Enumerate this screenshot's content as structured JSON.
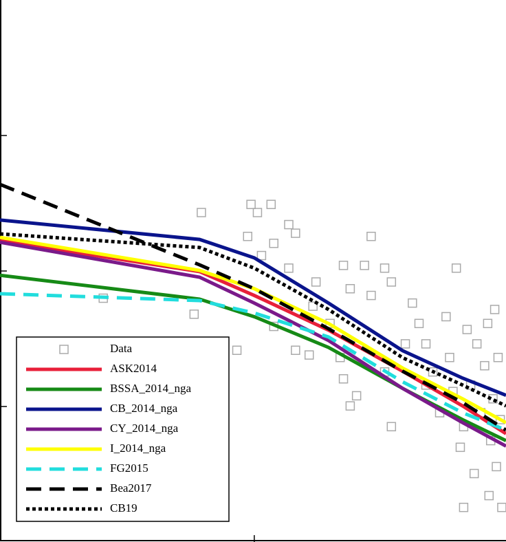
{
  "chart_data": {
    "type": "line",
    "xscale": "log",
    "yscale": "log",
    "xlim": [
      0.93,
      105
    ],
    "ylim": [
      0.001,
      10
    ],
    "xticks": [
      10
    ],
    "yticks": [
      0.01,
      0.1,
      1
    ],
    "legend": "lower-left",
    "x": [
      0.93,
      6,
      10,
      20,
      40,
      70,
      105
    ],
    "series": [
      {
        "name": "Data",
        "color": "#aaaaaa",
        "marker": "square",
        "x": [
          6.1,
          2.44,
          5.7,
          9.7,
          11.7,
          10.3,
          13.8,
          14.7,
          9.4,
          12,
          29.8,
          10.7,
          13.8,
          17.8,
          23,
          28,
          33.8,
          36,
          24.5,
          29.8,
          17.3,
          20.3,
          12,
          8.5,
          14.7,
          16.7,
          23,
          22.3,
          26,
          24.5,
          33.8,
          36,
          43.8,
          46.6,
          49.7,
          53,
          56.5,
          60,
          62,
          64,
          66,
          68.5,
          70.7,
          73,
          75.5,
          78,
          80,
          83,
          86,
          88.5,
          89.6,
          91,
          93,
          94.5,
          96,
          97.5,
          99.5,
          101,
          49.7,
          41,
          70.7
        ],
        "values": [
          0.27,
          0.063,
          0.048,
          0.31,
          0.31,
          0.27,
          0.22,
          0.19,
          0.18,
          0.16,
          0.18,
          0.13,
          0.105,
          0.083,
          0.11,
          0.11,
          0.105,
          0.083,
          0.074,
          0.066,
          0.055,
          0.041,
          0.039,
          0.026,
          0.026,
          0.024,
          0.016,
          0.023,
          0.012,
          0.0101,
          0.018,
          0.0071,
          0.058,
          0.041,
          0.029,
          0.018,
          0.009,
          0.046,
          0.023,
          0.0129,
          0.105,
          0.005,
          0.0071,
          0.037,
          0.0144,
          0.0032,
          0.029,
          0.009,
          0.02,
          0.041,
          0.0022,
          0.0056,
          0.0114,
          0.052,
          0.0036,
          0.023,
          0.008,
          0.0018,
          0.0144,
          0.029,
          0.0018
        ]
      },
      {
        "name": "ASK2014",
        "color": "#e8203a",
        "dash": "solid",
        "values": [
          0.167,
          0.099,
          0.066,
          0.0366,
          0.0182,
          0.0101,
          0.0063
        ]
      },
      {
        "name": "BSSA_2014_nga",
        "color": "#168a16",
        "dash": "solid",
        "values": [
          0.093,
          0.062,
          0.046,
          0.0273,
          0.0136,
          0.008,
          0.0056
        ]
      },
      {
        "name": "CB_2014_nga",
        "color": "#0a148c",
        "dash": "solid",
        "values": [
          0.238,
          0.171,
          0.125,
          0.058,
          0.0258,
          0.0162,
          0.0121
        ]
      },
      {
        "name": "CY_2014_nga",
        "color": "#7a1a8a",
        "dash": "solid",
        "values": [
          0.163,
          0.09,
          0.058,
          0.0307,
          0.0136,
          0.0076,
          0.0051
        ]
      },
      {
        "name": "I_2014_nga",
        "color": "#ffff00",
        "dash": "solid",
        "values": [
          0.177,
          0.101,
          0.074,
          0.041,
          0.0192,
          0.0114,
          0.0076
        ]
      },
      {
        "name": "FG2015",
        "color": "#22dddd",
        "dash": "dashed",
        "values": [
          0.068,
          0.0605,
          0.049,
          0.0326,
          0.0152,
          0.009,
          0.0067
        ]
      },
      {
        "name": "Bea2017",
        "color": "#000000",
        "dash": "dashed",
        "values": [
          0.436,
          0.111,
          0.074,
          0.0375,
          0.0182,
          0.0107,
          0.0067
        ]
      },
      {
        "name": "CB19",
        "color": "#000000",
        "dash": "dotted",
        "values": [
          0.188,
          0.149,
          0.105,
          0.052,
          0.0229,
          0.0144,
          0.0101
        ]
      }
    ]
  }
}
